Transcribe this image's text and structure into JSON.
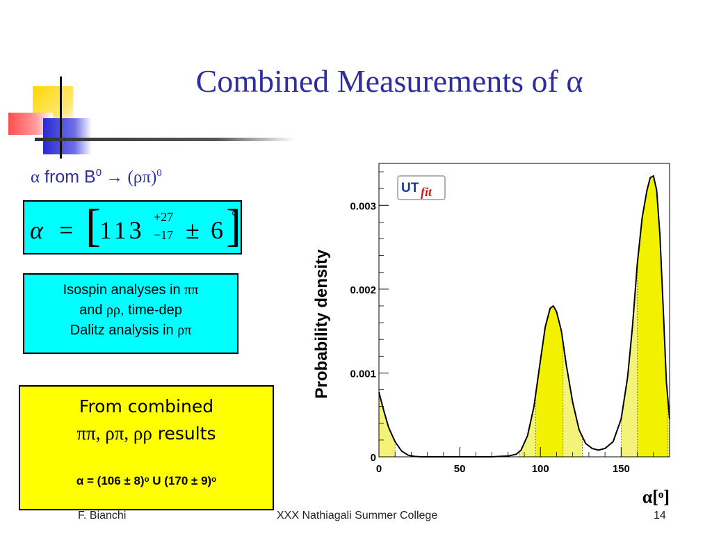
{
  "title": {
    "text": "Combined Measurements of ",
    "symbol": "α"
  },
  "subhead": {
    "alpha": "α",
    "from": " from B",
    "sup": "0",
    "arrow": " → (",
    "rhopi": "ρπ",
    "close": ")",
    "sup2": "0"
  },
  "formula": {
    "alpha": "α",
    "eq": "=",
    "value": "113",
    "err_up": "+27",
    "err_down": "−17",
    "pm": "±",
    "syst": "6",
    "deg": "°"
  },
  "isospin": {
    "line1_text": "Isospin analyses in ",
    "line1_sym": "ππ",
    "line2_pre": "and ",
    "line2_sym": "ρρ",
    "line2_post": ", time-dep",
    "line3_text": "Dalitz analysis in ",
    "line3_sym": "ρπ"
  },
  "combined": {
    "line1": "From combined",
    "line2_sym": "ππ, ρπ, ρρ",
    "line2_text": " results",
    "result": "α = (106 ± 8)ᵒ U (170 ± 9)ᵒ"
  },
  "footer": {
    "author": "F. Bianchi",
    "event": "XXX Nathiagali Summer College",
    "page": "14"
  },
  "chart_data": {
    "type": "area",
    "ylabel": "Probability density",
    "xlabel": "α[ᵒ]",
    "logo_text_ut": "UT",
    "logo_text_fit": "fit",
    "xlim": [
      0,
      180
    ],
    "ylim": [
      0,
      0.0035
    ],
    "x_ticks": [
      0,
      50,
      100,
      150
    ],
    "y_ticks": [
      0,
      0.001,
      0.002,
      0.003
    ],
    "y_tick_labels": [
      "0",
      "0.001",
      "0.002",
      "0.003"
    ],
    "x_tick_labels": [
      "0",
      "50",
      "100",
      "150"
    ],
    "fill_color": "#f2f200",
    "fill_color_light": "#f3f37a",
    "curve": {
      "x": [
        0,
        3,
        6,
        10,
        14,
        18,
        22,
        26,
        30,
        40,
        50,
        60,
        70,
        80,
        85,
        88,
        92,
        96,
        100,
        103,
        106,
        108,
        110,
        113,
        116,
        120,
        124,
        128,
        132,
        136,
        140,
        145,
        150,
        154,
        157,
        160,
        163,
        166,
        168,
        170,
        172,
        174,
        176,
        178,
        180
      ],
      "y": [
        0.00077,
        0.00055,
        0.00035,
        0.00018,
        7e-05,
        2e-05,
        5e-06,
        0,
        0,
        0,
        0,
        0,
        0,
        1e-05,
        3e-05,
        8e-05,
        0.00025,
        0.0006,
        0.00115,
        0.00155,
        0.00177,
        0.0018,
        0.00173,
        0.0015,
        0.0011,
        0.00065,
        0.00032,
        0.00016,
        0.0001,
        8e-05,
        0.0001,
        0.00018,
        0.00045,
        0.00095,
        0.00155,
        0.0023,
        0.00285,
        0.00318,
        0.00333,
        0.00335,
        0.00318,
        0.00265,
        0.0018,
        0.0009,
        0.00045
      ]
    },
    "regions_light": [
      [
        0,
        10
      ],
      [
        87,
        126
      ],
      [
        150,
        180
      ]
    ],
    "regions_dark": [
      [
        97,
        114
      ],
      [
        160,
        179
      ]
    ]
  }
}
